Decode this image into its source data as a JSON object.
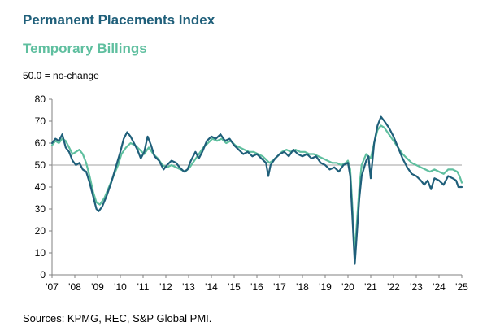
{
  "chart_data": {
    "type": "line",
    "title": "",
    "subtitle": "50.0 = no-change",
    "source": "Sources: KPMG, REC, S&P Global PMI.",
    "xlabel": "",
    "ylabel": "",
    "ylim": [
      0,
      80
    ],
    "xlim": [
      2007.0,
      2025.0
    ],
    "yticks": [
      "0",
      "10",
      "20",
      "30",
      "40",
      "50",
      "60",
      "70",
      "80"
    ],
    "xticks": [
      "'07",
      "'08",
      "'09",
      "'10",
      "'11",
      "'12",
      "'13",
      "'14",
      "'15",
      "'16",
      "'17",
      "'18",
      "'19",
      "'20",
      "'21",
      "'22",
      "'23",
      "'24",
      "'25"
    ],
    "reference_line": 50,
    "grid": false,
    "legend": "top-left",
    "series": [
      {
        "name": "Permanent Placements Index",
        "color": "#1f5f7a",
        "points": [
          [
            2007.0,
            60
          ],
          [
            2007.15,
            62
          ],
          [
            2007.3,
            61
          ],
          [
            2007.45,
            64
          ],
          [
            2007.6,
            58
          ],
          [
            2007.75,
            56
          ],
          [
            2007.9,
            52
          ],
          [
            2008.05,
            50
          ],
          [
            2008.2,
            51
          ],
          [
            2008.35,
            48
          ],
          [
            2008.5,
            47
          ],
          [
            2008.65,
            42
          ],
          [
            2008.8,
            36
          ],
          [
            2008.95,
            30
          ],
          [
            2009.05,
            29
          ],
          [
            2009.2,
            31
          ],
          [
            2009.4,
            36
          ],
          [
            2009.6,
            42
          ],
          [
            2009.8,
            49
          ],
          [
            2010.0,
            56
          ],
          [
            2010.15,
            62
          ],
          [
            2010.3,
            65
          ],
          [
            2010.45,
            63
          ],
          [
            2010.6,
            60
          ],
          [
            2010.75,
            57
          ],
          [
            2010.9,
            53
          ],
          [
            2011.05,
            56
          ],
          [
            2011.2,
            63
          ],
          [
            2011.35,
            59
          ],
          [
            2011.5,
            54
          ],
          [
            2011.7,
            52
          ],
          [
            2011.9,
            48
          ],
          [
            2012.05,
            50
          ],
          [
            2012.25,
            52
          ],
          [
            2012.45,
            51
          ],
          [
            2012.6,
            49
          ],
          [
            2012.8,
            47
          ],
          [
            2012.95,
            48
          ],
          [
            2013.1,
            52
          ],
          [
            2013.3,
            56
          ],
          [
            2013.45,
            53
          ],
          [
            2013.6,
            56
          ],
          [
            2013.8,
            61
          ],
          [
            2014.0,
            63
          ],
          [
            2014.2,
            62
          ],
          [
            2014.4,
            64
          ],
          [
            2014.6,
            61
          ],
          [
            2014.8,
            62
          ],
          [
            2015.0,
            59
          ],
          [
            2015.2,
            57
          ],
          [
            2015.4,
            55
          ],
          [
            2015.6,
            56
          ],
          [
            2015.8,
            54
          ],
          [
            2016.0,
            55
          ],
          [
            2016.2,
            53
          ],
          [
            2016.4,
            51
          ],
          [
            2016.5,
            45
          ],
          [
            2016.6,
            50
          ],
          [
            2016.8,
            53
          ],
          [
            2017.0,
            55
          ],
          [
            2017.2,
            56
          ],
          [
            2017.4,
            54
          ],
          [
            2017.6,
            57
          ],
          [
            2017.8,
            55
          ],
          [
            2018.0,
            54
          ],
          [
            2018.2,
            55
          ],
          [
            2018.4,
            53
          ],
          [
            2018.6,
            54
          ],
          [
            2018.8,
            51
          ],
          [
            2019.0,
            50
          ],
          [
            2019.2,
            48
          ],
          [
            2019.4,
            49
          ],
          [
            2019.6,
            47
          ],
          [
            2019.8,
            50
          ],
          [
            2020.0,
            51
          ],
          [
            2020.1,
            45
          ],
          [
            2020.2,
            25
          ],
          [
            2020.3,
            5
          ],
          [
            2020.4,
            20
          ],
          [
            2020.5,
            35
          ],
          [
            2020.6,
            45
          ],
          [
            2020.8,
            52
          ],
          [
            2020.9,
            54
          ],
          [
            2021.0,
            44
          ],
          [
            2021.15,
            60
          ],
          [
            2021.3,
            68
          ],
          [
            2021.45,
            72
          ],
          [
            2021.6,
            70
          ],
          [
            2021.8,
            67
          ],
          [
            2022.0,
            63
          ],
          [
            2022.2,
            58
          ],
          [
            2022.4,
            53
          ],
          [
            2022.6,
            49
          ],
          [
            2022.8,
            46
          ],
          [
            2023.0,
            45
          ],
          [
            2023.2,
            43
          ],
          [
            2023.35,
            41
          ],
          [
            2023.5,
            43
          ],
          [
            2023.65,
            39
          ],
          [
            2023.8,
            44
          ],
          [
            2024.0,
            43
          ],
          [
            2024.2,
            41
          ],
          [
            2024.4,
            45
          ],
          [
            2024.6,
            44
          ],
          [
            2024.75,
            43
          ],
          [
            2024.85,
            40
          ],
          [
            2025.0,
            40
          ]
        ]
      },
      {
        "name": "Temporary Billings",
        "color": "#5fbf9f",
        "points": [
          [
            2007.0,
            59
          ],
          [
            2007.15,
            61
          ],
          [
            2007.3,
            60
          ],
          [
            2007.45,
            62
          ],
          [
            2007.6,
            61
          ],
          [
            2007.75,
            58
          ],
          [
            2007.9,
            55
          ],
          [
            2008.05,
            56
          ],
          [
            2008.2,
            57
          ],
          [
            2008.35,
            55
          ],
          [
            2008.5,
            51
          ],
          [
            2008.65,
            45
          ],
          [
            2008.8,
            38
          ],
          [
            2008.95,
            33
          ],
          [
            2009.1,
            32
          ],
          [
            2009.3,
            35
          ],
          [
            2009.5,
            40
          ],
          [
            2009.7,
            45
          ],
          [
            2009.9,
            50
          ],
          [
            2010.05,
            55
          ],
          [
            2010.25,
            58
          ],
          [
            2010.45,
            60
          ],
          [
            2010.65,
            59
          ],
          [
            2010.85,
            57
          ],
          [
            2011.05,
            55
          ],
          [
            2011.25,
            58
          ],
          [
            2011.45,
            55
          ],
          [
            2011.65,
            53
          ],
          [
            2011.85,
            50
          ],
          [
            2012.05,
            49
          ],
          [
            2012.25,
            50
          ],
          [
            2012.45,
            49
          ],
          [
            2012.65,
            48
          ],
          [
            2012.85,
            47
          ],
          [
            2013.05,
            49
          ],
          [
            2013.25,
            52
          ],
          [
            2013.45,
            55
          ],
          [
            2013.65,
            58
          ],
          [
            2013.85,
            60
          ],
          [
            2014.05,
            62
          ],
          [
            2014.25,
            61
          ],
          [
            2014.45,
            62
          ],
          [
            2014.65,
            60
          ],
          [
            2014.85,
            61
          ],
          [
            2015.05,
            59
          ],
          [
            2015.25,
            58
          ],
          [
            2015.45,
            57
          ],
          [
            2015.65,
            56
          ],
          [
            2015.85,
            56
          ],
          [
            2016.05,
            55
          ],
          [
            2016.25,
            54
          ],
          [
            2016.45,
            52
          ],
          [
            2016.55,
            51
          ],
          [
            2016.7,
            52
          ],
          [
            2016.9,
            54
          ],
          [
            2017.1,
            56
          ],
          [
            2017.3,
            57
          ],
          [
            2017.5,
            56
          ],
          [
            2017.7,
            57
          ],
          [
            2017.9,
            56
          ],
          [
            2018.1,
            56
          ],
          [
            2018.3,
            55
          ],
          [
            2018.5,
            55
          ],
          [
            2018.7,
            54
          ],
          [
            2018.9,
            53
          ],
          [
            2019.1,
            52
          ],
          [
            2019.3,
            51
          ],
          [
            2019.5,
            51
          ],
          [
            2019.7,
            50
          ],
          [
            2019.9,
            51
          ],
          [
            2020.0,
            52
          ],
          [
            2020.1,
            48
          ],
          [
            2020.2,
            30
          ],
          [
            2020.3,
            10
          ],
          [
            2020.4,
            25
          ],
          [
            2020.5,
            40
          ],
          [
            2020.6,
            50
          ],
          [
            2020.8,
            55
          ],
          [
            2021.0,
            53
          ],
          [
            2021.15,
            60
          ],
          [
            2021.3,
            66
          ],
          [
            2021.45,
            68
          ],
          [
            2021.6,
            67
          ],
          [
            2021.8,
            64
          ],
          [
            2022.0,
            61
          ],
          [
            2022.2,
            58
          ],
          [
            2022.4,
            55
          ],
          [
            2022.6,
            53
          ],
          [
            2022.8,
            51
          ],
          [
            2023.0,
            50
          ],
          [
            2023.2,
            49
          ],
          [
            2023.4,
            48
          ],
          [
            2023.6,
            47
          ],
          [
            2023.8,
            48
          ],
          [
            2024.0,
            47
          ],
          [
            2024.2,
            46
          ],
          [
            2024.4,
            48
          ],
          [
            2024.6,
            48
          ],
          [
            2024.8,
            47
          ],
          [
            2024.9,
            45
          ],
          [
            2025.0,
            42
          ]
        ]
      }
    ]
  }
}
